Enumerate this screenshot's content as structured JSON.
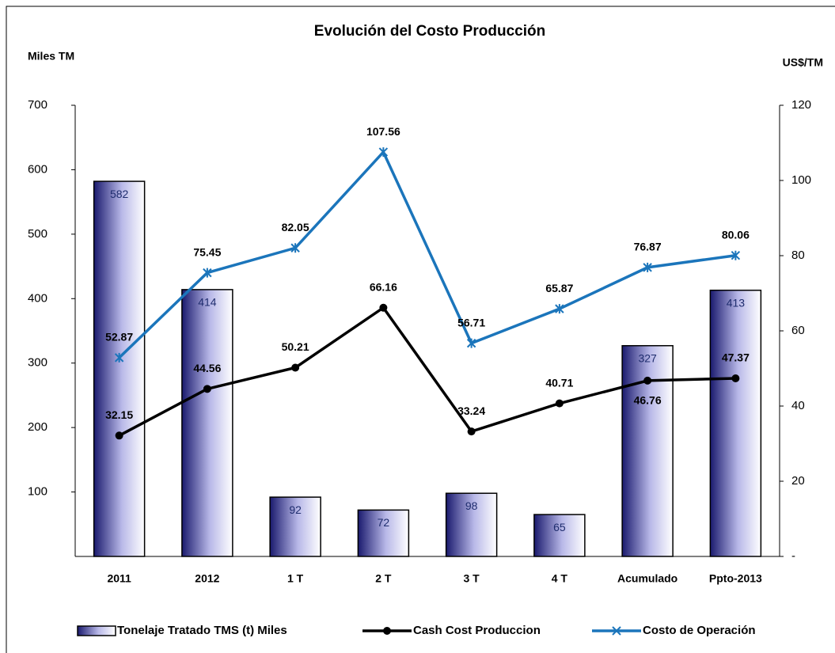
{
  "chart_data": {
    "type": "bar",
    "title": "Evolución del Costo Producción",
    "y_label": "Miles TM",
    "y2_label": "US$/TM",
    "categories": [
      "2011",
      "2012",
      "1 T",
      "2 T",
      "3 T",
      "4 T",
      "Acumulado",
      "Ppto-2013"
    ],
    "series": [
      {
        "name": "Tonelaje Tratado TMS (t) Miles",
        "type": "bar",
        "color": "#1a1a6e",
        "values": [
          582,
          414,
          92,
          72,
          98,
          65,
          327,
          413
        ]
      },
      {
        "name": "Cash Cost Produccion",
        "type": "line",
        "axis": "y2",
        "color": "#000000",
        "values": [
          32.15,
          44.56,
          50.21,
          66.16,
          33.24,
          40.71,
          46.76,
          47.37
        ]
      },
      {
        "name": "Costo de Operación",
        "type": "line",
        "axis": "y2",
        "color": "#1b75bb",
        "values": [
          52.87,
          75.45,
          82.05,
          107.56,
          56.71,
          65.87,
          76.87,
          80.06
        ]
      }
    ],
    "ylim": [
      0,
      700
    ],
    "yticks": [
      100,
      200,
      300,
      400,
      500,
      600,
      700
    ],
    "y2lim": [
      0,
      120
    ],
    "y2ticks": [
      {
        "value": 0,
        "label": "-"
      },
      20,
      40,
      60,
      80,
      100,
      120
    ],
    "legend": "bottom",
    "grid": false
  }
}
